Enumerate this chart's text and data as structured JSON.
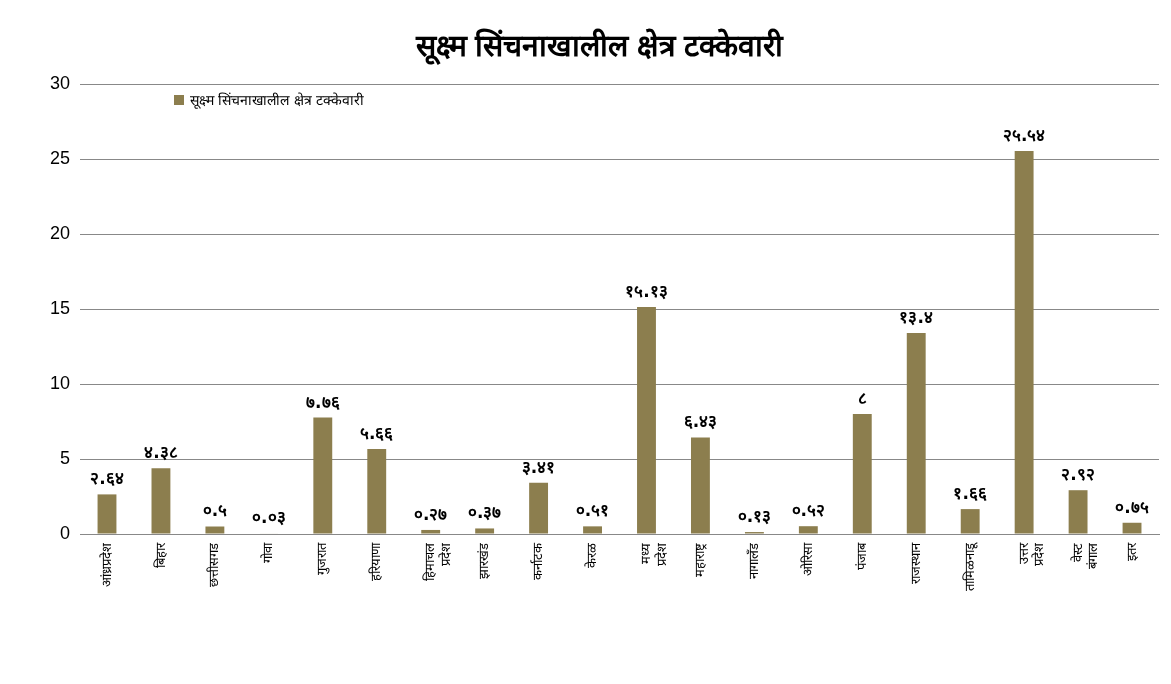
{
  "chart_data": {
    "type": "bar",
    "title": "सूक्ष्म सिंचनाखालील क्षेत्र टक्केवारी",
    "categories": [
      "आंध्रप्रदेश",
      "बिहार",
      "छत्तीसगड",
      "गोवा",
      "गुजरात",
      "हरियाणा",
      "हिमाचल प्रदेश",
      "झारखंड",
      "कर्नाटक",
      "केरळ",
      "मध्य प्रदेश",
      "महाराष्ट्र",
      "नागालँड",
      "ओरिसा",
      "पंजाब",
      "राजस्थान",
      "तामिळनाडू",
      "उत्तर प्रदेश",
      "वेस्ट बंगाल",
      "इतर"
    ],
    "series": [
      {
        "name": "सूक्ष्म सिंचनाखालील क्षेत्र टक्केवारी",
        "color": "#8c7e4e",
        "values": [
          2.64,
          4.38,
          0.5,
          0.03,
          7.76,
          5.66,
          0.27,
          0.37,
          3.41,
          0.51,
          15.13,
          6.43,
          0.13,
          0.52,
          8,
          13.4,
          1.66,
          25.54,
          2.92,
          0.75
        ],
        "value_labels": [
          "२.६४",
          "४.३८",
          "०.५",
          "०.०३",
          "७.७६",
          "५.६६",
          "०.२७",
          "०.३७",
          "३.४१",
          "०.५१",
          "१५.१३",
          "६.४३",
          "०.१३",
          "०.५२",
          "८",
          "१३.४",
          "१.६६",
          "२५.५४",
          "२.९२",
          "०.७५"
        ]
      }
    ],
    "ylim": [
      0,
      30
    ],
    "yticks": [
      0,
      5,
      10,
      15,
      20,
      25,
      30
    ],
    "grid": "y",
    "legend": "top left"
  }
}
